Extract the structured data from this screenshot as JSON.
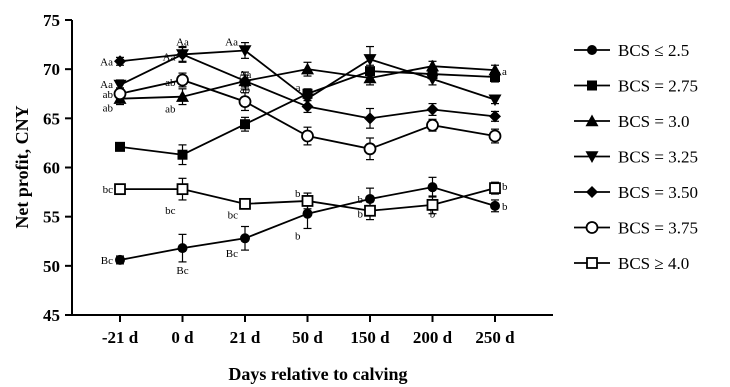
{
  "chart_data": {
    "type": "line",
    "xlabel": "Days relative to  calving",
    "ylabel": "Net profit, CNY",
    "categories": [
      "-21 d",
      "0 d",
      "21 d",
      "50 d",
      "150 d",
      "200 d",
      "250 d"
    ],
    "ylim": [
      45,
      75
    ],
    "yticks": [
      45,
      50,
      55,
      60,
      65,
      70,
      75
    ],
    "grid": false,
    "legend_position": "right",
    "series": [
      {
        "name": "BCS ≤ 2.5",
        "marker": "circle-filled",
        "values": [
          50.6,
          51.8,
          52.8,
          55.3,
          56.8,
          58.0,
          56.1
        ],
        "errors": [
          0.4,
          1.4,
          1.2,
          1.5,
          1.1,
          1.0,
          0.6
        ]
      },
      {
        "name": "BCS = 2.75",
        "marker": "square-filled",
        "values": [
          62.1,
          61.3,
          64.4,
          67.5,
          69.8,
          69.5,
          69.2
        ],
        "errors": [
          0.3,
          1.0,
          0.7,
          0.5,
          0.6,
          0.5,
          0.5
        ]
      },
      {
        "name": "BCS = 3.0",
        "marker": "triangle-up",
        "values": [
          67.0,
          67.2,
          68.8,
          70.0,
          69.1,
          70.3,
          69.9
        ],
        "errors": [
          0.6,
          0.8,
          0.6,
          0.7,
          0.7,
          0.5,
          0.5
        ]
      },
      {
        "name": "BCS = 3.25",
        "marker": "triangle-down",
        "values": [
          68.4,
          71.5,
          71.9,
          67.0,
          71.0,
          69.0,
          66.9
        ],
        "errors": [
          0.5,
          0.8,
          0.8,
          0.9,
          1.3,
          0.6,
          0.4
        ]
      },
      {
        "name": "BCS = 3.50",
        "marker": "diamond-filled",
        "values": [
          70.8,
          71.5,
          68.8,
          66.2,
          65.0,
          65.9,
          65.2
        ],
        "errors": [
          0.4,
          0.7,
          0.9,
          0.6,
          1.0,
          0.6,
          0.5
        ]
      },
      {
        "name": "BCS = 3.75",
        "marker": "circle-open",
        "values": [
          67.5,
          68.9,
          66.7,
          63.2,
          61.9,
          64.3,
          63.2
        ],
        "errors": [
          0.6,
          0.7,
          0.9,
          0.9,
          1.1,
          0.6,
          0.7
        ]
      },
      {
        "name": "BCS ≥ 4.0",
        "marker": "square-open",
        "values": [
          57.8,
          57.8,
          56.3,
          56.6,
          55.6,
          56.2,
          57.9
        ],
        "errors": [
          0.3,
          1.1,
          0.3,
          0.8,
          0.9,
          0.9,
          0.6
        ]
      }
    ],
    "annotations": [
      {
        "text": "Aa",
        "x": "-21 d",
        "y": 70.8,
        "side": "left"
      },
      {
        "text": "Aa",
        "x": "-21 d",
        "y": 68.5,
        "side": "left"
      },
      {
        "text": "ab",
        "x": "-21 d",
        "y": 67.5,
        "side": "left"
      },
      {
        "text": "ab",
        "x": "-21 d",
        "y": 66.1,
        "side": "left"
      },
      {
        "text": "bc",
        "x": "-21 d",
        "y": 57.8,
        "side": "left"
      },
      {
        "text": "Bc",
        "x": "-21 d",
        "y": 50.6,
        "side": "left"
      },
      {
        "text": "Aa",
        "x": "0 d",
        "y": 72.8,
        "side": "center"
      },
      {
        "text": "Aa",
        "x": "0 d",
        "y": 71.3,
        "side": "left"
      },
      {
        "text": "ab",
        "x": "0 d",
        "y": 68.7,
        "side": "left"
      },
      {
        "text": "ab",
        "x": "0 d",
        "y": 66.0,
        "side": "left"
      },
      {
        "text": "bc",
        "x": "0 d",
        "y": 55.7,
        "side": "left"
      },
      {
        "text": "Bc",
        "x": "0 d",
        "y": 49.6,
        "side": "center"
      },
      {
        "text": "Aa",
        "x": "21 d",
        "y": 72.8,
        "side": "left"
      },
      {
        "text": "Aa",
        "x": "21 d",
        "y": 69.5,
        "side": "center"
      },
      {
        "text": "ab",
        "x": "21 d",
        "y": 68.0,
        "side": "center"
      },
      {
        "text": "bc",
        "x": "21 d",
        "y": 55.2,
        "side": "left"
      },
      {
        "text": "Bc",
        "x": "21 d",
        "y": 51.3,
        "side": "left"
      },
      {
        "text": "a",
        "x": "50 d",
        "y": 68.2,
        "side": "left"
      },
      {
        "text": "b",
        "x": "50 d",
        "y": 57.4,
        "side": "left"
      },
      {
        "text": "b",
        "x": "50 d",
        "y": 53.1,
        "side": "left"
      },
      {
        "text": "b",
        "x": "150 d",
        "y": 56.8,
        "side": "left"
      },
      {
        "text": "b",
        "x": "150 d",
        "y": 55.3,
        "side": "left"
      },
      {
        "text": "a",
        "x": "200 d",
        "y": 70.8,
        "side": "center"
      },
      {
        "text": "b",
        "x": "200 d",
        "y": 58.1,
        "side": "center"
      },
      {
        "text": "b",
        "x": "200 d",
        "y": 55.3,
        "side": "center"
      },
      {
        "text": "a",
        "x": "250 d",
        "y": 69.8,
        "side": "right"
      },
      {
        "text": "b",
        "x": "250 d",
        "y": 58.1,
        "side": "right"
      },
      {
        "text": "b",
        "x": "250 d",
        "y": 56.1,
        "side": "right"
      }
    ]
  }
}
